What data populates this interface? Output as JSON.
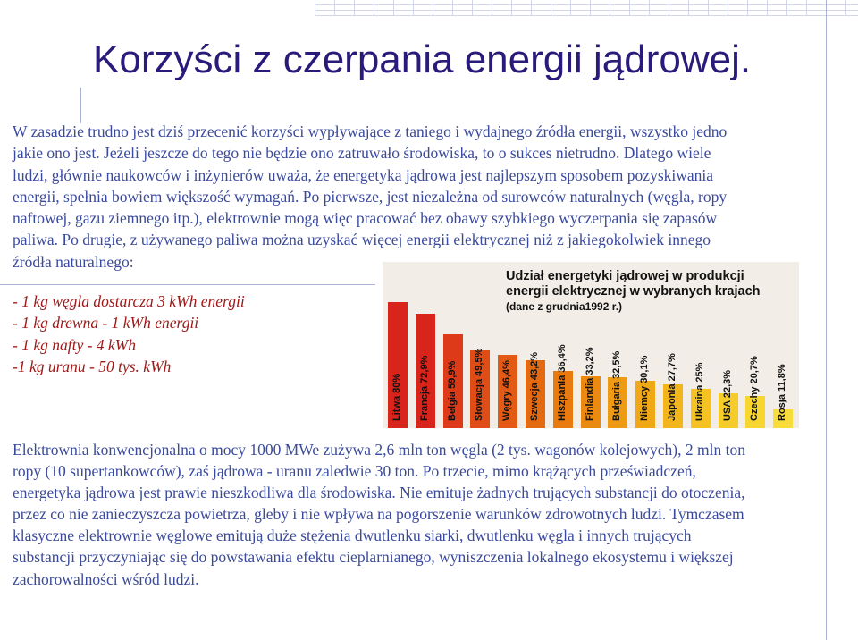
{
  "title": "Korzyści  z czerpania energii jądrowej.",
  "paragraph1": [
    "W zasadzie trudno jest dziś przecenić korzyści wypływające z taniego i wydajnego źródła energii, wszystko jedno",
    "jakie ono jest. Jeżeli jeszcze do tego nie będzie ono zatruwało środowiska, to o sukces nietrudno. Dlatego wiele",
    "ludzi, głównie naukowców i inżynierów uważa, że energetyka jądrowa jest najlepszym sposobem pozyskiwania",
    "energii, spełnia bowiem większość wymagań. Po pierwsze, jest niezależna od surowców naturalnych (węgla, ropy",
    "naftowej, gazu ziemnego itp.), elektrownie mogą więc pracować bez obawy szybkiego wyczerpania się zapasów",
    "paliwa. Po drugie, z używanego paliwa można uzyskać więcej energii elektrycznej niż z jakiegokolwiek innego",
    "źródła naturalnego:"
  ],
  "list": [
    "- 1 kg węgla dostarcza 3 kWh energii",
    "- 1 kg drewna - 1 kWh energii",
    "- 1 kg nafty - 4 kWh",
    "-1 kg uranu - 50 tys. kWh"
  ],
  "paragraph2": [
    "Elektrownia konwencjonalna o mocy 1000 MWe zużywa 2,6 mln ton węgla (2 tys. wagonów kolejowych), 2 mln ton",
    "ropy (10 supertankowców), zaś jądrowa - uranu zaledwie 30 ton. Po trzecie, mimo krążących przeświadczeń,",
    "energetyka jądrowa jest prawie nieszkodliwa dla środowiska. Nie emituje żadnych trujących substancji do otoczenia,",
    "przez co nie zanieczyszcza powietrza, gleby i nie wpływa na pogorszenie warunków zdrowotnych ludzi. Tymczasem",
    "klasyczne elektrownie węglowe emitują duże stężenia dwutlenku siarki, dwutlenku węgla i innych trujących",
    "substancji przyczyniając się do powstawania efektu cieplarnianego, wyniszczenia lokalnego ekosystemu i większej",
    "zachorowalności wśród ludzi."
  ],
  "chart_data": {
    "type": "bar",
    "title": "Udział energetyki jądrowej w produkcji energii elektrycznej w wybranych krajach",
    "title_lines": [
      "Udział energetyki jądrowej w produkcji",
      "energii elektrycznej w wybranych krajach"
    ],
    "subtitle": "(dane z grudnia1992 r.)",
    "bar_labels": [
      "Litwa 80%",
      "Francja 72,9%",
      "Belgia 59,9%",
      "Słowacja 49,5%",
      "Węgry 46,4%",
      "Szwecja 43,2%",
      "Hiszpania 36,4%",
      "Finlandia 33,2%",
      "Bułgaria 32,5%",
      "Niemcy 30,1%",
      "Japonia 27,7%",
      "Ukraina 25%",
      "USA 22,3%",
      "Czechy 20,7%",
      "Rosja 11,8%"
    ],
    "categories": [
      "Litwa",
      "Francja",
      "Belgia",
      "Słowacja",
      "Węgry",
      "Szwecja",
      "Hiszpania",
      "Finlandia",
      "Bułgaria",
      "Niemcy",
      "Japonia",
      "Ukraina",
      "USA",
      "Czechy",
      "Rosja"
    ],
    "values": [
      80,
      72.9,
      59.9,
      49.5,
      46.4,
      43.2,
      36.4,
      33.2,
      32.5,
      30.1,
      27.7,
      25,
      22.3,
      20.7,
      11.8
    ],
    "colors": [
      "#d8241a",
      "#d8241a",
      "#dc3a18",
      "#e04c16",
      "#e25a14",
      "#e46a12",
      "#e87a10",
      "#eb8a10",
      "#ee9a12",
      "#f0a816",
      "#f2b61c",
      "#f4c222",
      "#f6cc2a",
      "#f7d632",
      "#f8dc3c"
    ],
    "ylim": [
      0,
      100
    ]
  }
}
